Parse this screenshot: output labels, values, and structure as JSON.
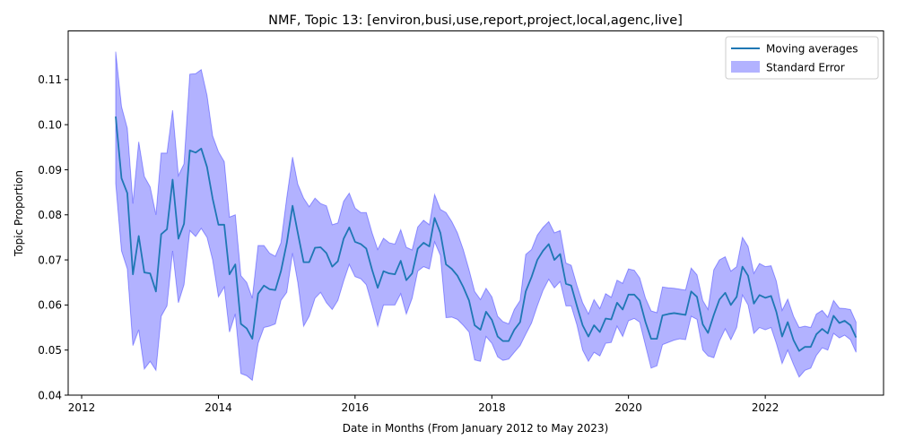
{
  "chart_data": {
    "type": "line",
    "title": "NMF, Topic 13: [environ,busi,use,report,project,local,agenc,live]",
    "xlabel": "Date in Months (From January 2012 to May 2023)",
    "ylabel": "Topic Proportion",
    "xlim": [
      "2011-10-21",
      "2023-09-25"
    ],
    "ylim": [
      0.04,
      0.1208
    ],
    "xticks": [
      "2012",
      "2014",
      "2016",
      "2018",
      "2020",
      "2022"
    ],
    "yticks": [
      "0.04",
      "0.05",
      "0.06",
      "0.07",
      "0.08",
      "0.09",
      "0.10",
      "0.11"
    ],
    "grid": false,
    "legend_position": "top-right",
    "legend": [
      "Moving averages",
      "Standard Error"
    ],
    "colors": {
      "line": "#1f77b4",
      "band": "#0000ff",
      "band_alpha": 0.3
    },
    "series": [
      {
        "name": "Moving averages",
        "x": [
          "2012-07",
          "2012-08",
          "2012-09",
          "2012-10",
          "2012-11",
          "2012-12",
          "2013-01",
          "2013-02",
          "2013-03",
          "2013-04",
          "2013-05",
          "2013-06",
          "2013-07",
          "2013-08",
          "2013-09",
          "2013-10",
          "2013-11",
          "2013-12",
          "2014-01",
          "2014-02",
          "2014-03",
          "2014-04",
          "2014-05",
          "2014-06",
          "2014-07",
          "2014-08",
          "2014-09",
          "2014-10",
          "2014-11",
          "2014-12",
          "2015-01",
          "2015-02",
          "2015-03",
          "2015-04",
          "2015-05",
          "2015-06",
          "2015-07",
          "2015-08",
          "2015-09",
          "2015-10",
          "2015-11",
          "2015-12",
          "2016-01",
          "2016-02",
          "2016-03",
          "2016-04",
          "2016-05",
          "2016-06",
          "2016-07",
          "2016-08",
          "2016-09",
          "2016-10",
          "2016-11",
          "2016-12",
          "2017-01",
          "2017-02",
          "2017-03",
          "2017-04",
          "2017-05",
          "2017-06",
          "2017-07",
          "2017-08",
          "2017-09",
          "2017-10",
          "2017-11",
          "2017-12",
          "2018-01",
          "2018-02",
          "2018-03",
          "2018-04",
          "2018-05",
          "2018-06",
          "2018-07",
          "2018-08",
          "2018-09",
          "2018-10",
          "2018-11",
          "2018-12",
          "2019-01",
          "2019-02",
          "2019-03",
          "2019-04",
          "2019-05",
          "2019-06",
          "2019-07",
          "2019-08",
          "2019-09",
          "2019-10",
          "2019-11",
          "2019-12",
          "2020-01",
          "2020-02",
          "2020-03",
          "2020-04",
          "2020-05",
          "2020-06",
          "2020-07",
          "2020-08",
          "2020-09",
          "2020-10",
          "2020-11",
          "2020-12",
          "2021-01",
          "2021-02",
          "2021-03",
          "2021-04",
          "2021-05",
          "2021-06",
          "2021-07",
          "2021-08",
          "2021-09",
          "2021-10",
          "2021-11",
          "2021-12",
          "2022-01",
          "2022-02",
          "2022-03",
          "2022-04",
          "2022-05",
          "2022-06",
          "2022-07",
          "2022-08",
          "2022-09",
          "2022-10",
          "2022-11",
          "2022-12",
          "2023-01",
          "2023-02",
          "2023-03",
          "2023-04",
          "2023-05"
        ],
        "values": [
          0.1018,
          0.0881,
          0.0848,
          0.0668,
          0.0753,
          0.0672,
          0.067,
          0.063,
          0.0757,
          0.0768,
          0.0878,
          0.0747,
          0.078,
          0.0943,
          0.0938,
          0.0947,
          0.0906,
          0.0836,
          0.0778,
          0.0778,
          0.0668,
          0.069,
          0.0558,
          0.0548,
          0.0525,
          0.0625,
          0.0643,
          0.0635,
          0.0633,
          0.0675,
          0.0737,
          0.082,
          0.076,
          0.0695,
          0.0695,
          0.0727,
          0.0728,
          0.0715,
          0.0685,
          0.0697,
          0.0747,
          0.0772,
          0.074,
          0.0735,
          0.0725,
          0.0678,
          0.0638,
          0.0675,
          0.067,
          0.0668,
          0.0698,
          0.0655,
          0.067,
          0.0725,
          0.0738,
          0.073,
          0.0793,
          0.076,
          0.069,
          0.068,
          0.0665,
          0.064,
          0.061,
          0.0555,
          0.0545,
          0.0585,
          0.0567,
          0.053,
          0.052,
          0.052,
          0.0545,
          0.0562,
          0.063,
          0.0662,
          0.07,
          0.072,
          0.0735,
          0.07,
          0.0713,
          0.0647,
          0.0643,
          0.0597,
          0.0555,
          0.053,
          0.0555,
          0.054,
          0.057,
          0.0568,
          0.0605,
          0.059,
          0.0623,
          0.0623,
          0.061,
          0.0562,
          0.0525,
          0.0525,
          0.0577,
          0.058,
          0.0582,
          0.058,
          0.0578,
          0.063,
          0.0618,
          0.0557,
          0.0538,
          0.0578,
          0.0612,
          0.0627,
          0.06,
          0.0618,
          0.0685,
          0.0665,
          0.0603,
          0.0622,
          0.0616,
          0.062,
          0.0585,
          0.053,
          0.0562,
          0.0522,
          0.0498,
          0.0507,
          0.0507,
          0.0535,
          0.0547,
          0.0537,
          0.0576,
          0.056,
          0.0565,
          0.0555,
          0.0528
        ],
        "lower": [
          0.087,
          0.072,
          0.068,
          0.051,
          0.0545,
          0.0458,
          0.0475,
          0.0455,
          0.0575,
          0.0598,
          0.072,
          0.0605,
          0.0645,
          0.0765,
          0.0752,
          0.077,
          0.075,
          0.07,
          0.0618,
          0.064,
          0.054,
          0.058,
          0.0448,
          0.0443,
          0.0433,
          0.0515,
          0.055,
          0.0553,
          0.0558,
          0.061,
          0.0628,
          0.0715,
          0.065,
          0.0553,
          0.0575,
          0.0615,
          0.0628,
          0.0605,
          0.059,
          0.061,
          0.0653,
          0.069,
          0.0663,
          0.0658,
          0.0645,
          0.06,
          0.0553,
          0.06,
          0.06,
          0.06,
          0.0625,
          0.058,
          0.0615,
          0.0675,
          0.0685,
          0.068,
          0.074,
          0.071,
          0.0572,
          0.0573,
          0.0568,
          0.0555,
          0.054,
          0.0478,
          0.0475,
          0.053,
          0.0515,
          0.0485,
          0.0477,
          0.048,
          0.0495,
          0.051,
          0.0535,
          0.056,
          0.0598,
          0.0632,
          0.0657,
          0.0638,
          0.0652,
          0.0598,
          0.0598,
          0.0555,
          0.05,
          0.0475,
          0.0495,
          0.0487,
          0.0515,
          0.0517,
          0.0553,
          0.053,
          0.0565,
          0.057,
          0.0562,
          0.051,
          0.046,
          0.0465,
          0.0512,
          0.0517,
          0.0522,
          0.0525,
          0.0523,
          0.0575,
          0.0568,
          0.05,
          0.0487,
          0.0483,
          0.052,
          0.0547,
          0.0523,
          0.055,
          0.0622,
          0.06,
          0.0537,
          0.055,
          0.0545,
          0.055,
          0.0515,
          0.047,
          0.05,
          0.0468,
          0.044,
          0.0455,
          0.046,
          0.0488,
          0.0505,
          0.05,
          0.0537,
          0.0527,
          0.0533,
          0.0523,
          0.0495
        ],
        "upper": [
          0.1162,
          0.104,
          0.0992,
          0.0825,
          0.0962,
          0.0885,
          0.0862,
          0.08,
          0.0937,
          0.0937,
          0.1032,
          0.0887,
          0.0913,
          0.1112,
          0.1113,
          0.1122,
          0.1065,
          0.0975,
          0.094,
          0.0918,
          0.0795,
          0.08,
          0.0665,
          0.065,
          0.0615,
          0.0732,
          0.0732,
          0.0715,
          0.0708,
          0.0738,
          0.0838,
          0.0928,
          0.0868,
          0.0837,
          0.0818,
          0.0837,
          0.0825,
          0.082,
          0.0778,
          0.0782,
          0.083,
          0.0848,
          0.0815,
          0.0805,
          0.0805,
          0.076,
          0.0723,
          0.0748,
          0.0738,
          0.0735,
          0.0767,
          0.0728,
          0.0722,
          0.0773,
          0.0788,
          0.0778,
          0.0845,
          0.0812,
          0.0805,
          0.0785,
          0.076,
          0.0723,
          0.0678,
          0.063,
          0.0612,
          0.0637,
          0.0618,
          0.0575,
          0.0563,
          0.0558,
          0.059,
          0.061,
          0.0712,
          0.0723,
          0.0755,
          0.0772,
          0.0785,
          0.076,
          0.0765,
          0.0693,
          0.0688,
          0.0643,
          0.0605,
          0.058,
          0.0612,
          0.0592,
          0.0625,
          0.0617,
          0.0655,
          0.0648,
          0.068,
          0.0677,
          0.066,
          0.0615,
          0.0587,
          0.0583,
          0.064,
          0.0638,
          0.0637,
          0.0635,
          0.0633,
          0.0682,
          0.0667,
          0.061,
          0.059,
          0.0678,
          0.07,
          0.0707,
          0.0675,
          0.0685,
          0.075,
          0.073,
          0.067,
          0.0692,
          0.0685,
          0.0687,
          0.0653,
          0.0588,
          0.0613,
          0.0575,
          0.055,
          0.0553,
          0.055,
          0.058,
          0.0588,
          0.0573,
          0.061,
          0.0593,
          0.0592,
          0.059,
          0.0562
        ]
      }
    ]
  }
}
